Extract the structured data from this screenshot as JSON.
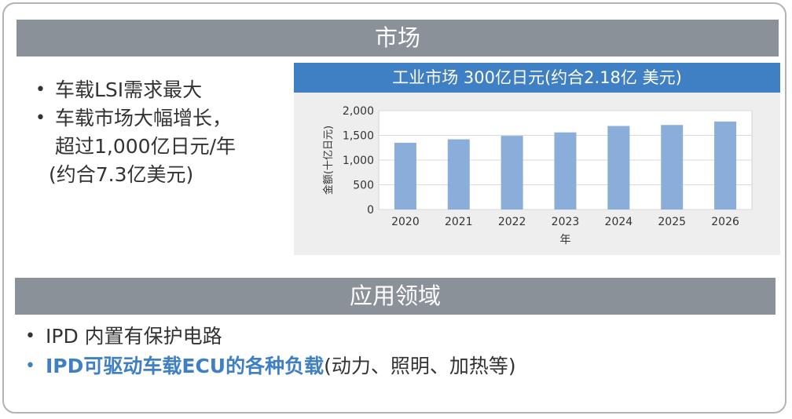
{
  "sections": {
    "market_title": "市场",
    "apps_title": "应用领域"
  },
  "market_bullets": {
    "item1": "车载LSI需求最大",
    "item2_line1": "车载市场大幅增长，",
    "item2_line2": "超过1,000亿日元/年",
    "item2_line3": "(约合7.3亿美元)"
  },
  "apps_bullets": {
    "item1": "IPD 内置有保护电路",
    "item2_highlight": "IPD可驱动车载ECU的各种负载",
    "item2_rest": "(动力、照明、加热等)"
  },
  "bullet_symbol": "•",
  "colors": {
    "section_bar": "#8a9199",
    "accent_blue": "#3f7fc4",
    "bar_fill": "#8aaed9",
    "chart_bg": "#eeeeee",
    "plot_bg": "#ffffff",
    "gridline": "#d9d9d9"
  },
  "chart_data": {
    "type": "bar",
    "title": "工业市场  300亿日元(约合2.18亿 美元)",
    "xlabel": "年",
    "ylabel": "金额(十亿日元)",
    "categories": [
      "2020",
      "2021",
      "2022",
      "2023",
      "2024",
      "2025",
      "2026"
    ],
    "values": [
      1350,
      1420,
      1490,
      1560,
      1690,
      1710,
      1780
    ],
    "ylim": [
      0,
      2000
    ],
    "yticks": [
      0,
      500,
      1000,
      1500,
      2000
    ],
    "ytick_labels": [
      "0",
      "500",
      "1,000",
      "1,500",
      "2,000"
    ],
    "grid": true
  }
}
